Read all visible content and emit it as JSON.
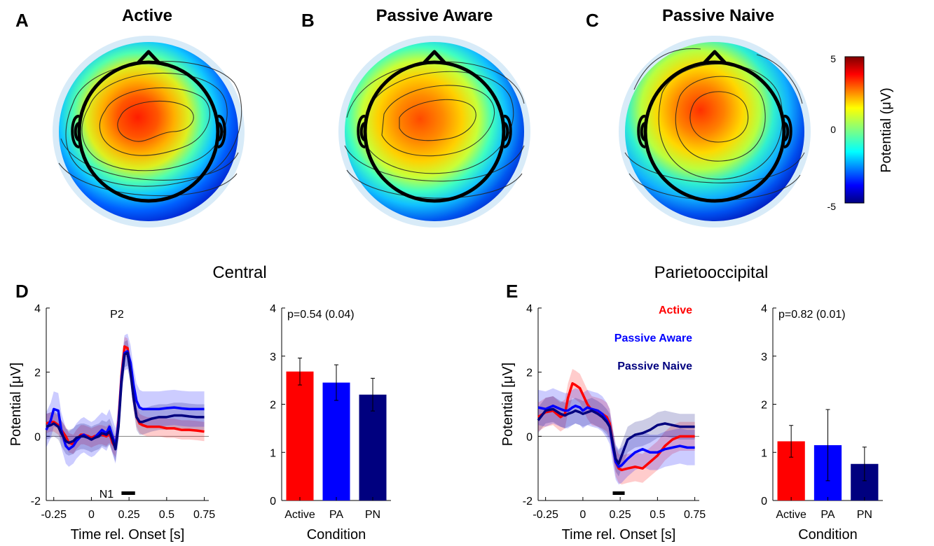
{
  "panels": {
    "A": {
      "letter": "A",
      "title": "Active"
    },
    "B": {
      "letter": "B",
      "title": "Passive Aware"
    },
    "C": {
      "letter": "C",
      "title": "Passive Naive"
    },
    "D": {
      "letter": "D"
    },
    "E": {
      "letter": "E"
    }
  },
  "colorbar": {
    "label": "Potential (μV)",
    "ticks": [
      "5",
      "0",
      "-5"
    ],
    "range": [
      -5,
      5
    ]
  },
  "section_titles": {
    "central": "Central",
    "parietooccipital": "Parietooccipital"
  },
  "chart_data": [
    {
      "id": "D-erp",
      "type": "line",
      "panel": "D",
      "region": "Central",
      "xlabel": "Time rel. Onset [s]",
      "ylabel": "Potential [μV]",
      "xlim": [
        -0.3,
        0.78
      ],
      "ylim": [
        -2,
        4
      ],
      "xticks": [
        "-0.25",
        "0",
        "0.25",
        "0.5",
        "0.75"
      ],
      "yticks": [
        "-2",
        "0",
        "2",
        "4"
      ],
      "annotations": {
        "peak": "P2",
        "trough": "N1"
      },
      "significance_bar": [
        0.2,
        0.29
      ],
      "series": [
        {
          "name": "Active",
          "color": "#ff0000",
          "band": 0.3,
          "x": [
            -0.3,
            -0.27,
            -0.25,
            -0.22,
            -0.2,
            -0.17,
            -0.15,
            -0.12,
            -0.1,
            -0.07,
            -0.05,
            -0.02,
            0,
            0.02,
            0.05,
            0.07,
            0.1,
            0.12,
            0.14,
            0.16,
            0.18,
            0.2,
            0.22,
            0.24,
            0.26,
            0.28,
            0.3,
            0.32,
            0.34,
            0.37,
            0.4,
            0.45,
            0.5,
            0.55,
            0.6,
            0.65,
            0.7,
            0.75
          ],
          "y": [
            0.4,
            0.45,
            0.45,
            0.35,
            0.2,
            0,
            -0.2,
            -0.25,
            -0.1,
            0.05,
            0.05,
            0,
            -0.05,
            0,
            0.05,
            0.05,
            0,
            0.1,
            -0.2,
            -0.35,
            0.5,
            1.9,
            2.8,
            2.75,
            2.1,
            1.2,
            0.6,
            0.4,
            0.35,
            0.3,
            0.3,
            0.3,
            0.25,
            0.25,
            0.2,
            0.2,
            0.18,
            0.15
          ]
        },
        {
          "name": "Passive Aware",
          "color": "#0000ff",
          "band": 0.55,
          "x": [
            -0.3,
            -0.27,
            -0.25,
            -0.22,
            -0.2,
            -0.17,
            -0.15,
            -0.12,
            -0.1,
            -0.07,
            -0.05,
            -0.02,
            0,
            0.02,
            0.05,
            0.07,
            0.1,
            0.12,
            0.14,
            0.16,
            0.18,
            0.2,
            0.22,
            0.24,
            0.26,
            0.28,
            0.3,
            0.32,
            0.34,
            0.37,
            0.4,
            0.45,
            0.5,
            0.55,
            0.6,
            0.65,
            0.7,
            0.75
          ],
          "y": [
            0.2,
            0.5,
            0.85,
            0.8,
            0.2,
            -0.3,
            -0.4,
            -0.3,
            -0.15,
            0,
            0.05,
            -0.05,
            -0.1,
            -0.05,
            0.1,
            0.2,
            0.1,
            0.3,
            0,
            -0.3,
            0.4,
            1.8,
            2.6,
            2.65,
            2.3,
            1.6,
            1.1,
            0.9,
            0.85,
            0.85,
            0.85,
            0.85,
            0.88,
            0.9,
            0.87,
            0.85,
            0.85,
            0.85
          ]
        },
        {
          "name": "Passive Naive",
          "color": "#00007f",
          "band": 0.4,
          "x": [
            -0.3,
            -0.27,
            -0.25,
            -0.22,
            -0.2,
            -0.17,
            -0.15,
            -0.12,
            -0.1,
            -0.07,
            -0.05,
            -0.02,
            0,
            0.02,
            0.05,
            0.07,
            0.1,
            0.12,
            0.14,
            0.16,
            0.18,
            0.2,
            0.22,
            0.24,
            0.26,
            0.28,
            0.3,
            0.32,
            0.34,
            0.37,
            0.4,
            0.45,
            0.5,
            0.55,
            0.6,
            0.65,
            0.7,
            0.75
          ],
          "y": [
            0.3,
            0.35,
            0.4,
            0.3,
            0.1,
            -0.15,
            -0.2,
            -0.15,
            -0.05,
            0,
            0,
            -0.05,
            -0.1,
            -0.05,
            0,
            0.1,
            0.05,
            0.15,
            -0.1,
            -0.4,
            0.3,
            1.7,
            2.55,
            2.6,
            2.0,
            1.2,
            0.6,
            0.45,
            0.45,
            0.5,
            0.55,
            0.6,
            0.6,
            0.65,
            0.65,
            0.62,
            0.6,
            0.6
          ]
        }
      ]
    },
    {
      "id": "D-bar",
      "type": "bar",
      "panel": "D",
      "region": "Central",
      "annotation": "p=0.54 (0.04)",
      "categories": [
        "Active",
        "PA",
        "PN"
      ],
      "values": [
        2.68,
        2.45,
        2.2
      ],
      "errors": [
        0.28,
        0.37,
        0.34
      ],
      "colors": [
        "#ff0000",
        "#0000ff",
        "#00007f"
      ],
      "xlabel": "Condition",
      "ylim": [
        0,
        4
      ],
      "yticks": [
        "0",
        "1",
        "2",
        "3",
        "4"
      ]
    },
    {
      "id": "E-erp",
      "type": "line",
      "panel": "E",
      "region": "Parietooccipital",
      "xlabel": "Time rel. Onset [s]",
      "ylabel": "Potential [μV]",
      "xlim": [
        -0.3,
        0.78
      ],
      "ylim": [
        -2,
        4
      ],
      "xticks": [
        "-0.25",
        "0",
        "0.25",
        "0.5",
        "0.75"
      ],
      "yticks": [
        "-2",
        "0",
        "2",
        "4"
      ],
      "significance_bar": [
        0.2,
        0.28
      ],
      "series": [
        {
          "name": "Active",
          "color": "#ff0000",
          "band": 0.45,
          "x": [
            -0.3,
            -0.25,
            -0.2,
            -0.15,
            -0.12,
            -0.1,
            -0.07,
            -0.05,
            -0.02,
            0,
            0.03,
            0.06,
            0.1,
            0.13,
            0.16,
            0.18,
            0.2,
            0.22,
            0.24,
            0.26,
            0.3,
            0.35,
            0.4,
            0.45,
            0.5,
            0.55,
            0.6,
            0.65,
            0.7,
            0.75
          ],
          "y": [
            0.6,
            0.75,
            0.8,
            0.6,
            0.7,
            1.2,
            1.65,
            1.6,
            1.5,
            1.3,
            1.0,
            0.8,
            0.75,
            0.7,
            0.6,
            0.4,
            -0.2,
            -0.8,
            -1.0,
            -1.05,
            -1.0,
            -0.95,
            -1.0,
            -0.8,
            -0.6,
            -0.3,
            -0.1,
            0,
            0,
            0
          ]
        },
        {
          "name": "Passive Aware",
          "color": "#0000ff",
          "band": 0.55,
          "x": [
            -0.3,
            -0.25,
            -0.2,
            -0.15,
            -0.12,
            -0.1,
            -0.07,
            -0.05,
            -0.02,
            0,
            0.03,
            0.06,
            0.1,
            0.13,
            0.16,
            0.18,
            0.2,
            0.22,
            0.24,
            0.26,
            0.3,
            0.35,
            0.4,
            0.45,
            0.5,
            0.55,
            0.6,
            0.65,
            0.7,
            0.75
          ],
          "y": [
            0.9,
            0.85,
            0.95,
            0.85,
            0.8,
            0.8,
            0.9,
            0.95,
            0.9,
            0.8,
            0.9,
            0.85,
            0.8,
            0.7,
            0.5,
            0.3,
            -0.3,
            -0.8,
            -0.95,
            -0.9,
            -0.7,
            -0.5,
            -0.4,
            -0.5,
            -0.5,
            -0.4,
            -0.35,
            -0.3,
            -0.35,
            -0.35
          ]
        },
        {
          "name": "Passive Naive",
          "color": "#00007f",
          "band": 0.4,
          "x": [
            -0.3,
            -0.25,
            -0.2,
            -0.15,
            -0.12,
            -0.1,
            -0.07,
            -0.05,
            -0.02,
            0,
            0.03,
            0.06,
            0.1,
            0.13,
            0.16,
            0.18,
            0.2,
            0.22,
            0.24,
            0.26,
            0.3,
            0.35,
            0.4,
            0.45,
            0.5,
            0.55,
            0.6,
            0.65,
            0.7,
            0.75
          ],
          "y": [
            0.5,
            0.8,
            0.85,
            0.7,
            0.65,
            0.7,
            0.75,
            0.8,
            0.75,
            0.7,
            0.75,
            0.8,
            0.7,
            0.6,
            0.45,
            0.3,
            -0.2,
            -0.7,
            -0.85,
            -0.6,
            -0.1,
            0.05,
            0.1,
            0.2,
            0.35,
            0.4,
            0.35,
            0.3,
            0.3,
            0.3
          ]
        }
      ],
      "legend": [
        "Active",
        "Passive Aware",
        "Passive Naive"
      ]
    },
    {
      "id": "E-bar",
      "type": "bar",
      "panel": "E",
      "region": "Parietooccipital",
      "annotation": "p=0.82 (0.01)",
      "categories": [
        "Active",
        "PA",
        "PN"
      ],
      "values": [
        1.23,
        1.15,
        0.76
      ],
      "errors": [
        0.33,
        0.74,
        0.35
      ],
      "colors": [
        "#ff0000",
        "#0000ff",
        "#00007f"
      ],
      "xlabel": "Condition",
      "ylim": [
        0,
        4
      ],
      "yticks": [
        "0",
        "1",
        "2",
        "3",
        "4"
      ]
    }
  ]
}
